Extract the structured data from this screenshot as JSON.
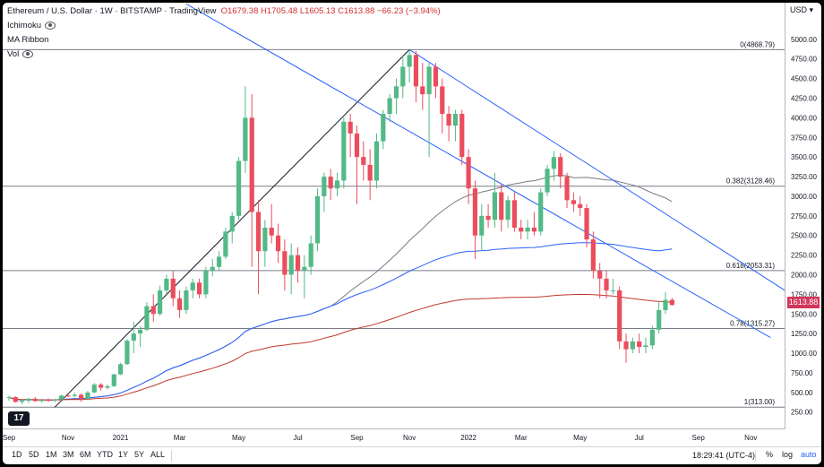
{
  "header": {
    "symbol": "Ethereum / U.S. Dollar · 1W · BITSTAMP · TradingView",
    "ohlc_o": "O1679.38",
    "ohlc_h": "H1705.48",
    "ohlc_l": "L1605.13",
    "ohlc_c": "C1613.88",
    "change": "−66.23 (−3.94%)",
    "indicators": [
      "Ichimoku",
      "MA Ribbon",
      "Vol"
    ]
  },
  "currency": "USD",
  "last_price": "1613.88",
  "bottom_bar": {
    "ranges": [
      "1D",
      "5D",
      "1M",
      "3M",
      "6M",
      "YTD",
      "1Y",
      "5Y",
      "ALL"
    ],
    "clock": "18:29:41 (UTC-4)",
    "buttons": [
      "%",
      "log",
      "auto"
    ]
  },
  "fib_labels": [
    "0(4868.79)",
    "0.382(3128.46)",
    "0.618(2053.31)",
    "0.78(1315.27)",
    "1(313.00)"
  ],
  "chart_data": {
    "type": "candlestick",
    "title": "Ethereum / U.S. Dollar · 1W · BITSTAMP",
    "ylim": [
      0,
      5200
    ],
    "y_ticks": [
      250,
      500,
      750,
      1000,
      1250,
      1500,
      1750,
      2000,
      2250,
      2500,
      2750,
      3000,
      3250,
      3500,
      3750,
      4000,
      4250,
      4500,
      4750,
      5000
    ],
    "x_labels": [
      "Sep",
      "Nov",
      "2021",
      "Mar",
      "May",
      "Jul",
      "Sep",
      "Nov",
      "2022",
      "Mar",
      "May",
      "Jul",
      "Sep",
      "Nov"
    ],
    "x_label_weeks": [
      0,
      9,
      17,
      26,
      35,
      44,
      53,
      61,
      70,
      78,
      87,
      96,
      105,
      113
    ],
    "fib_levels": [
      4868.79,
      3128.46,
      2053.31,
      1315.27,
      313.0
    ],
    "colors": {
      "up": "#53b987",
      "down": "#eb4d5c",
      "channel": "#2962ff",
      "trendline": "#131722",
      "ma_gray": "#787b86",
      "ma_blue": "#2962ff",
      "ma_red": "#c0392b"
    },
    "candles": [
      [
        430,
        460,
        395,
        440
      ],
      [
        440,
        450,
        370,
        380
      ],
      [
        380,
        410,
        350,
        395
      ],
      [
        395,
        430,
        365,
        420
      ],
      [
        420,
        440,
        380,
        390
      ],
      [
        390,
        420,
        370,
        405
      ],
      [
        405,
        425,
        380,
        400
      ],
      [
        400,
        420,
        375,
        410
      ],
      [
        410,
        470,
        400,
        460
      ],
      [
        460,
        480,
        440,
        455
      ],
      [
        455,
        500,
        440,
        470
      ],
      [
        470,
        490,
        380,
        420
      ],
      [
        420,
        520,
        410,
        500
      ],
      [
        500,
        620,
        490,
        600
      ],
      [
        600,
        620,
        520,
        560
      ],
      [
        560,
        600,
        540,
        580
      ],
      [
        580,
        740,
        570,
        730
      ],
      [
        730,
        880,
        720,
        860
      ],
      [
        860,
        1180,
        850,
        1160
      ],
      [
        1160,
        1400,
        1000,
        1250
      ],
      [
        1250,
        1350,
        1080,
        1300
      ],
      [
        1300,
        1650,
        1280,
        1600
      ],
      [
        1600,
        1750,
        1400,
        1500
      ],
      [
        1500,
        1860,
        1480,
        1800
      ],
      [
        1800,
        2000,
        1750,
        1950
      ],
      [
        1950,
        2050,
        1600,
        1700
      ],
      [
        1700,
        1800,
        1450,
        1550
      ],
      [
        1550,
        1850,
        1500,
        1800
      ],
      [
        1800,
        1950,
        1700,
        1900
      ],
      [
        1900,
        1950,
        1700,
        1750
      ],
      [
        1750,
        2100,
        1700,
        2050
      ],
      [
        2050,
        2200,
        1980,
        2100
      ],
      [
        2100,
        2300,
        2050,
        2230
      ],
      [
        2230,
        2600,
        2200,
        2550
      ],
      [
        2550,
        2800,
        2400,
        2750
      ],
      [
        2750,
        3500,
        2700,
        3450
      ],
      [
        3450,
        4400,
        3300,
        4000
      ],
      [
        4000,
        4300,
        2100,
        2800
      ],
      [
        2800,
        2950,
        1750,
        2300
      ],
      [
        2300,
        2700,
        2100,
        2600
      ],
      [
        2600,
        2900,
        2400,
        2500
      ],
      [
        2500,
        2650,
        2150,
        2300
      ],
      [
        2300,
        2450,
        1800,
        2000
      ],
      [
        2000,
        2400,
        1750,
        2250
      ],
      [
        2250,
        2350,
        1900,
        2050
      ],
      [
        2050,
        2250,
        1700,
        2100
      ],
      [
        2100,
        2500,
        2000,
        2400
      ],
      [
        2400,
        3100,
        2300,
        3000
      ],
      [
        3000,
        3300,
        2800,
        3250
      ],
      [
        3250,
        3350,
        2950,
        3100
      ],
      [
        3100,
        3300,
        3000,
        3200
      ],
      [
        3200,
        4000,
        3100,
        3950
      ],
      [
        3950,
        4050,
        3500,
        3800
      ],
      [
        3800,
        3900,
        2900,
        3500
      ],
      [
        3500,
        3700,
        3200,
        3400
      ],
      [
        3400,
        3600,
        2950,
        3200
      ],
      [
        3200,
        3800,
        3100,
        3700
      ],
      [
        3700,
        4100,
        3600,
        4050
      ],
      [
        4050,
        4300,
        3950,
        4250
      ],
      [
        4250,
        4500,
        4050,
        4400
      ],
      [
        4400,
        4800,
        4250,
        4650
      ],
      [
        4650,
        4868,
        4450,
        4800
      ],
      [
        4800,
        4850,
        4200,
        4400
      ],
      [
        4400,
        4700,
        4100,
        4300
      ],
      [
        4300,
        4700,
        3500,
        4650
      ],
      [
        4650,
        4700,
        4250,
        4400
      ],
      [
        4400,
        4500,
        3800,
        4050
      ],
      [
        4050,
        4150,
        3700,
        3900
      ],
      [
        3900,
        4100,
        3700,
        4050
      ],
      [
        4050,
        4100,
        3400,
        3500
      ],
      [
        3500,
        3600,
        2900,
        3100
      ],
      [
        3100,
        3200,
        2200,
        2500
      ],
      [
        2500,
        2900,
        2300,
        2750
      ],
      [
        2750,
        2900,
        2600,
        2700
      ],
      [
        2700,
        3300,
        2600,
        3050
      ],
      [
        3050,
        3150,
        2550,
        2700
      ],
      [
        2700,
        3000,
        2600,
        2950
      ],
      [
        2950,
        3050,
        2550,
        2600
      ],
      [
        2600,
        2700,
        2450,
        2550
      ],
      [
        2550,
        2700,
        2450,
        2600
      ],
      [
        2600,
        2800,
        2500,
        2550
      ],
      [
        2550,
        3100,
        2500,
        3050
      ],
      [
        3050,
        3400,
        3000,
        3350
      ],
      [
        3350,
        3580,
        3200,
        3500
      ],
      [
        3500,
        3550,
        3100,
        3250
      ],
      [
        3250,
        3300,
        2850,
        2950
      ],
      [
        2950,
        3050,
        2800,
        2900
      ],
      [
        2900,
        3000,
        2750,
        2850
      ],
      [
        2850,
        2900,
        2350,
        2450
      ],
      [
        2450,
        2550,
        1950,
        2050
      ],
      [
        2050,
        2150,
        1700,
        1950
      ],
      [
        1950,
        2050,
        1700,
        1800
      ],
      [
        1800,
        1950,
        1750,
        1800
      ],
      [
        1800,
        1850,
        1050,
        1150
      ],
      [
        1150,
        1250,
        880,
        1050
      ],
      [
        1050,
        1200,
        1000,
        1150
      ],
      [
        1150,
        1250,
        1000,
        1080
      ],
      [
        1080,
        1200,
        1000,
        1100
      ],
      [
        1100,
        1350,
        1050,
        1300
      ],
      [
        1300,
        1650,
        1250,
        1550
      ],
      [
        1550,
        1780,
        1500,
        1680
      ],
      [
        1680,
        1705,
        1605,
        1614
      ]
    ]
  }
}
